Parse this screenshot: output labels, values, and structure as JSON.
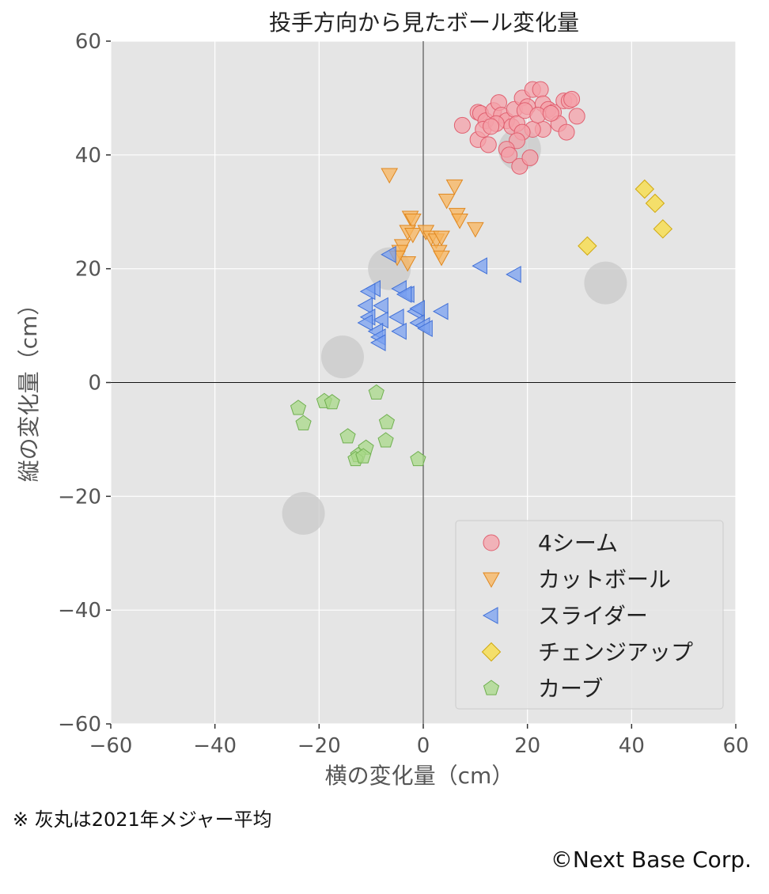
{
  "chart_data": {
    "type": "scatter",
    "title": "投手方向から見たボール変化量",
    "xlabel": "横の変化量（cm）",
    "ylabel": "縦の変化量（cm）",
    "xlim": [
      -60,
      60
    ],
    "ylim": [
      -60,
      60
    ],
    "xticks": [
      "−60",
      "−40",
      "−20",
      "0",
      "20",
      "40",
      "60"
    ],
    "yticks": [
      "60",
      "40",
      "20",
      "0",
      "−20",
      "−40",
      "−60"
    ],
    "grid": true,
    "legend_position": "lower-right",
    "series": [
      {
        "name": "4シーム",
        "marker": "circle",
        "color": "#f4a0a8",
        "edge": "#e06070",
        "points": [
          [
            7.5,
            45.2
          ],
          [
            10.5,
            47.5
          ],
          [
            11,
            47.3
          ],
          [
            12,
            46
          ],
          [
            13.5,
            47.8
          ],
          [
            14.5,
            49.2
          ],
          [
            15,
            47
          ],
          [
            16,
            46
          ],
          [
            17,
            45
          ],
          [
            17.5,
            48
          ],
          [
            18,
            45.5
          ],
          [
            19,
            50
          ],
          [
            20,
            48.5
          ],
          [
            21,
            51.5
          ],
          [
            22.5,
            51.5
          ],
          [
            23,
            49
          ],
          [
            24,
            48
          ],
          [
            25,
            47.5
          ],
          [
            26,
            45.5
          ],
          [
            27,
            49.5
          ],
          [
            28,
            49.5
          ],
          [
            28.5,
            49.8
          ],
          [
            29.5,
            46.8
          ],
          [
            27.5,
            44
          ],
          [
            23,
            44.5
          ],
          [
            21,
            44.5
          ],
          [
            19,
            44
          ],
          [
            18,
            42.5
          ],
          [
            16,
            41
          ],
          [
            16.5,
            40
          ],
          [
            18.5,
            38
          ],
          [
            20.5,
            39.5
          ],
          [
            10.5,
            42.7
          ],
          [
            11.5,
            44.5
          ],
          [
            12.5,
            41.8
          ],
          [
            14,
            45.5
          ],
          [
            19.5,
            47.8
          ],
          [
            22,
            47
          ],
          [
            24.5,
            47.3
          ],
          [
            13,
            45
          ]
        ]
      },
      {
        "name": "カットボール",
        "marker": "triangle-down",
        "color": "#f8b45c",
        "edge": "#e08820",
        "points": [
          [
            -6.5,
            36.5
          ],
          [
            6,
            34.5
          ],
          [
            4.5,
            32
          ],
          [
            6.5,
            29.5
          ],
          [
            7,
            28.5
          ],
          [
            -2.5,
            29
          ],
          [
            -2,
            28.5
          ],
          [
            -3,
            26.5
          ],
          [
            -2,
            26
          ],
          [
            0.5,
            26.5
          ],
          [
            1.5,
            25.5
          ],
          [
            2.5,
            25
          ],
          [
            3.5,
            25.5
          ],
          [
            10,
            27
          ],
          [
            -4,
            24
          ],
          [
            -4.5,
            23
          ],
          [
            3,
            23
          ],
          [
            3.5,
            22
          ],
          [
            -3,
            21
          ],
          [
            -5,
            22
          ]
        ]
      },
      {
        "name": "スライダー",
        "marker": "triangle-left",
        "color": "#7aa0f0",
        "edge": "#4070d8",
        "points": [
          [
            -6.5,
            22.5
          ],
          [
            -9.5,
            16.5
          ],
          [
            -10.5,
            16
          ],
          [
            -4.5,
            16.5
          ],
          [
            -3,
            15.5
          ],
          [
            -8,
            13.5
          ],
          [
            -11,
            13.5
          ],
          [
            -5,
            11.5
          ],
          [
            -8,
            11
          ],
          [
            -10.5,
            11.5
          ],
          [
            -11,
            10.5
          ],
          [
            -9,
            9
          ],
          [
            -8.5,
            8
          ],
          [
            -8.5,
            7
          ],
          [
            -4.5,
            9
          ],
          [
            -1.5,
            12.5
          ],
          [
            -1,
            13
          ],
          [
            3.5,
            12.5
          ],
          [
            -1,
            10.5
          ],
          [
            0,
            10
          ],
          [
            0.5,
            9.5
          ],
          [
            11,
            20.5
          ],
          [
            17.5,
            19
          ],
          [
            -3.5,
            15.5
          ]
        ]
      },
      {
        "name": "チェンジアップ",
        "marker": "diamond",
        "color": "#f8dc40",
        "edge": "#d0a810",
        "points": [
          [
            42.5,
            34
          ],
          [
            44.5,
            31.5
          ],
          [
            46,
            27
          ],
          [
            31.5,
            24
          ]
        ]
      },
      {
        "name": "カーブ",
        "marker": "pentagon",
        "color": "#a8d888",
        "edge": "#70b050",
        "points": [
          [
            -24,
            -4.5
          ],
          [
            -23,
            -7.2
          ],
          [
            -19,
            -3.3
          ],
          [
            -17.5,
            -3.5
          ],
          [
            -9,
            -1.8
          ],
          [
            -14.5,
            -9.5
          ],
          [
            -7,
            -7
          ],
          [
            -7.2,
            -10.2
          ],
          [
            -11,
            -11.5
          ],
          [
            -12.5,
            -12.8
          ],
          [
            -13,
            -13.5
          ],
          [
            -11.5,
            -13
          ],
          [
            -1,
            -13.5
          ]
        ]
      },
      {
        "name": "",
        "marker": "avg-circle",
        "color": "#c8c8c8",
        "edge": "#c8c8c8",
        "points": [
          [
            18.5,
            41
          ],
          [
            -6.5,
            20
          ],
          [
            35,
            17.5
          ],
          [
            -15.5,
            4.5
          ],
          [
            -23,
            -23
          ]
        ]
      }
    ]
  },
  "note": "※ 灰丸は2021年メジャー平均",
  "copyright": "©Next Base Corp."
}
